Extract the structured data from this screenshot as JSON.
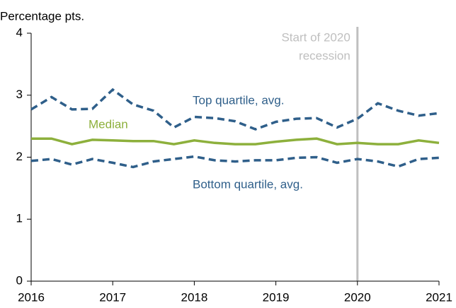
{
  "chart_data": {
    "type": "line",
    "y_label": "Percentage pts.",
    "x": [
      2016,
      2016.25,
      2016.5,
      2016.75,
      2017,
      2017.25,
      2017.5,
      2017.75,
      2018,
      2018.25,
      2018.5,
      2018.75,
      2019,
      2019.25,
      2019.5,
      2019.75,
      2020,
      2020.25,
      2020.5,
      2020.75,
      2021
    ],
    "series": [
      {
        "name": "Top quartile, avg.",
        "color": "#2f5f8a",
        "dash": true,
        "values": [
          2.77,
          2.97,
          2.77,
          2.78,
          3.09,
          2.85,
          2.75,
          2.48,
          2.65,
          2.63,
          2.58,
          2.45,
          2.57,
          2.62,
          2.63,
          2.48,
          2.62,
          2.87,
          2.75,
          2.67,
          2.71
        ]
      },
      {
        "name": "Median",
        "color": "#8db03c",
        "dash": false,
        "values": [
          2.3,
          2.3,
          2.21,
          2.28,
          2.27,
          2.26,
          2.26,
          2.21,
          2.27,
          2.23,
          2.21,
          2.21,
          2.25,
          2.28,
          2.3,
          2.21,
          2.23,
          2.21,
          2.21,
          2.27,
          2.23
        ]
      },
      {
        "name": "Bottom quartile, avg.",
        "color": "#2f5f8a",
        "dash": true,
        "values": [
          1.94,
          1.97,
          1.88,
          1.97,
          1.91,
          1.84,
          1.93,
          1.97,
          2.01,
          1.95,
          1.93,
          1.95,
          1.95,
          1.99,
          2.0,
          1.91,
          1.97,
          1.93,
          1.85,
          1.97,
          1.99
        ]
      }
    ],
    "xlim": [
      2016,
      2021
    ],
    "xticks": [
      2016,
      2017,
      2018,
      2019,
      2020,
      2021
    ],
    "ylim": [
      0,
      4
    ],
    "yticks": [
      0,
      1,
      2,
      3,
      4
    ],
    "annotation": {
      "x": 2020,
      "color": "#bfbfbf",
      "lines": [
        "Start of 2020",
        "recession"
      ]
    }
  }
}
